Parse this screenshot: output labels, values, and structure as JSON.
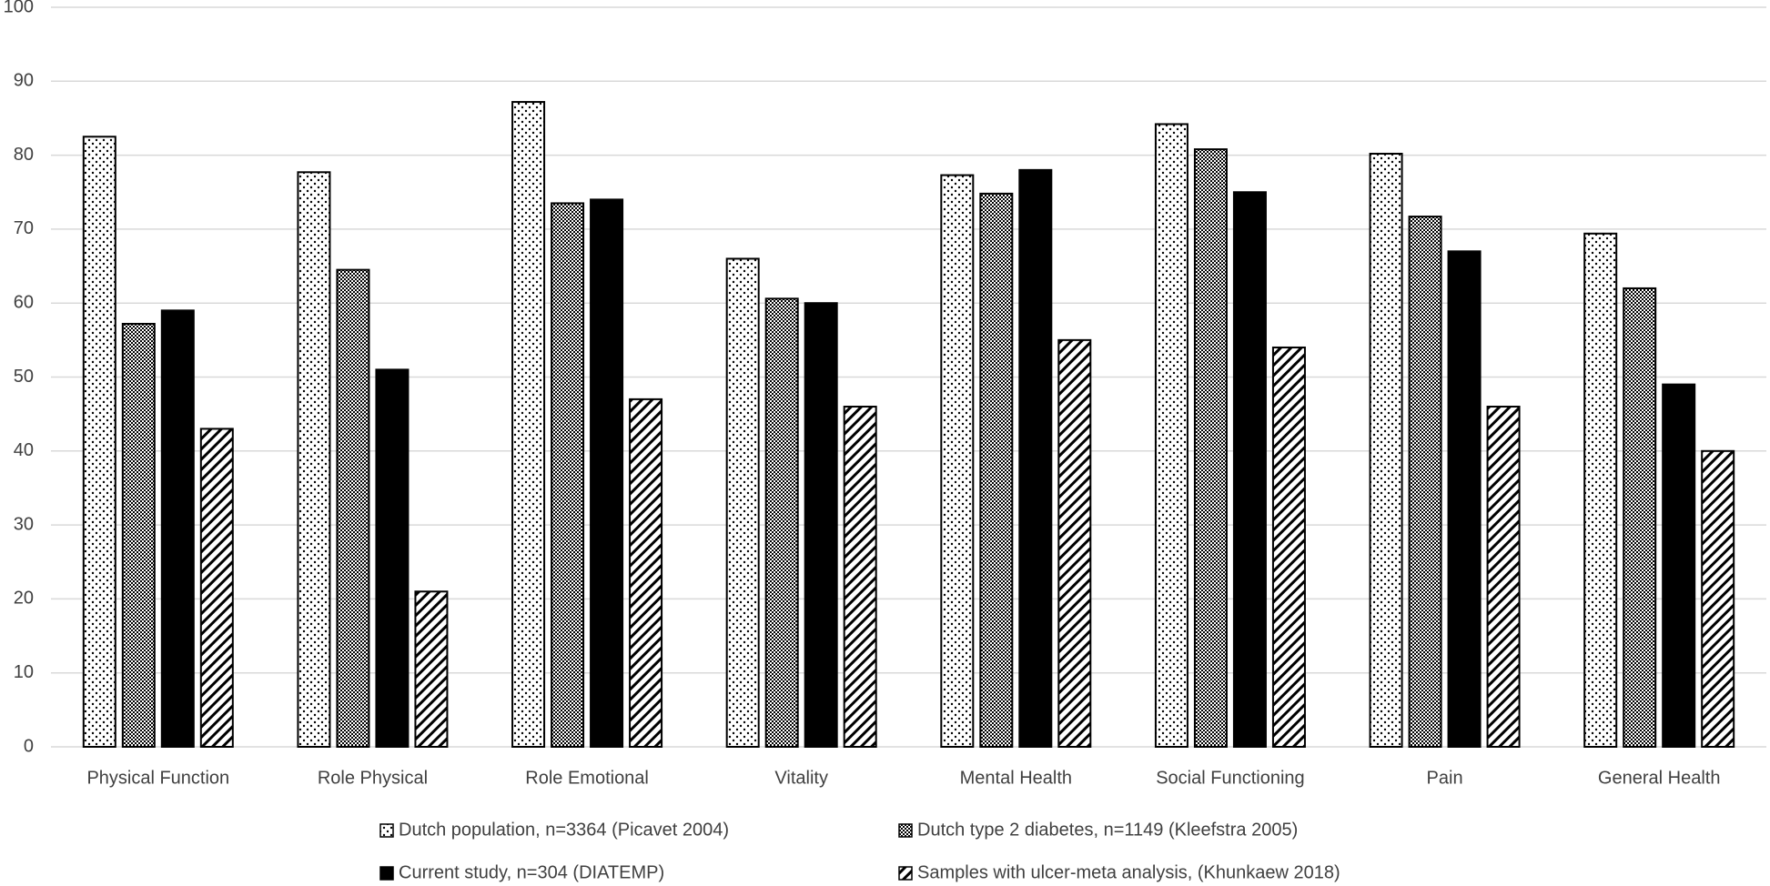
{
  "chart_data": {
    "type": "bar",
    "categories": [
      "Physical Function",
      "Role Physical",
      "Role Emotional",
      "Vitality",
      "Mental Health",
      "Social Functioning",
      "Pain",
      "General Health"
    ],
    "series": [
      {
        "name": "Dutch population, n=3364 (Picavet 2004)",
        "color": "#000000",
        "pattern": "dots",
        "values": [
          82.5,
          77.7,
          87.2,
          66,
          77.3,
          84.2,
          80.2,
          69.4
        ]
      },
      {
        "name": "Dutch type 2 diabetes, n=1149 (Kleefstra 2005)",
        "color": "#000000",
        "pattern": "crosshatch",
        "values": [
          57.2,
          64.5,
          73.5,
          60.6,
          74.8,
          80.8,
          71.7,
          62
        ]
      },
      {
        "name": "Current study, n=304 (DIATEMP)",
        "color": "#000000",
        "pattern": "solid",
        "values": [
          59,
          51,
          74,
          60,
          78,
          75,
          67,
          49
        ]
      },
      {
        "name": "Samples with ulcer-meta analysis, (Khunkaew 2018)",
        "color": "#000000",
        "pattern": "diagonal",
        "values": [
          43,
          21,
          47,
          46,
          55,
          54,
          46,
          40
        ]
      }
    ],
    "ylim": [
      0,
      100
    ],
    "yticks": [
      0,
      10,
      20,
      30,
      40,
      50,
      60,
      70,
      80,
      90,
      100
    ],
    "grid": true,
    "legend": "bottom"
  }
}
